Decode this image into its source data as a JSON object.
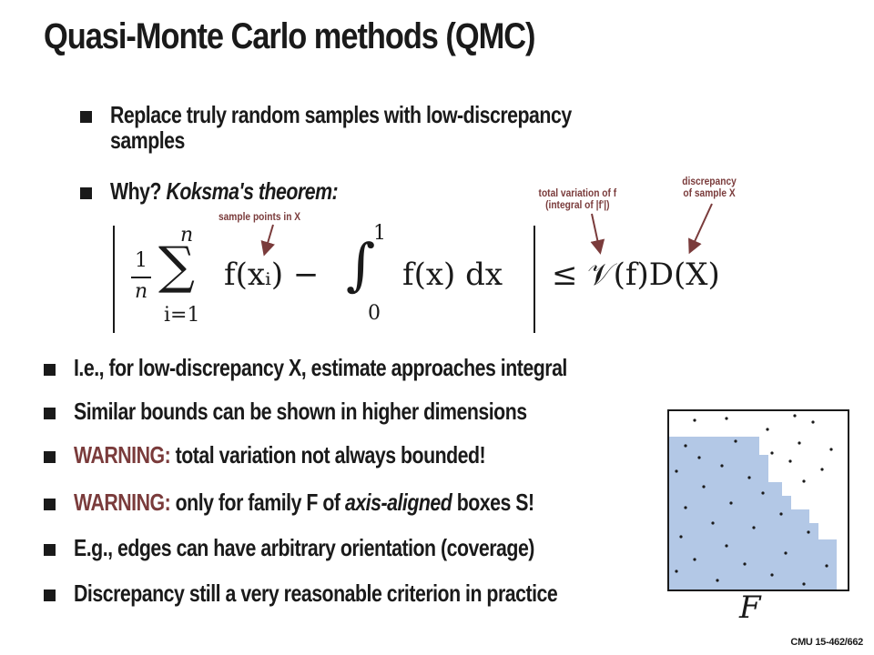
{
  "title": "Quasi-Monte Carlo methods (QMC)",
  "bullets_top": [
    {
      "line1": "Replace truly random samples with low-discrepancy",
      "line2": "samples"
    },
    {
      "plain": "Why? ",
      "italic": "Koksma's theorem:"
    }
  ],
  "annotations": {
    "sample_points": "sample points in X",
    "total_variation_1": "total variation of f",
    "total_variation_2": "(integral of |f'|)",
    "discrepancy_1": "discrepancy",
    "discrepancy_2": "of sample X"
  },
  "formula": {
    "frac_num": "1",
    "frac_den": "n",
    "sum_upper": "n",
    "sum_lower": "i=1",
    "sum_symbol": "∑",
    "term1": "f(xᵢ) −",
    "integral_symbol": "∫",
    "int_upper": "1",
    "int_lower": "0",
    "term2": "f(x)  dx",
    "rhs": "≤ 𝒱(f)D(X)"
  },
  "bullets_bottom": [
    {
      "text": "I.e., for low-discrepancy X, estimate approaches integral"
    },
    {
      "text": "Similar bounds can be shown in higher dimensions"
    },
    {
      "warn": "WARNING:",
      "text": " total variation not always bounded!"
    },
    {
      "warn": "WARNING:",
      "text_pre": " only for family F of ",
      "italic": "axis-aligned",
      "text_post": " boxes S!"
    },
    {
      "text": "E.g., edges can have arbitrary orientation (coverage)"
    },
    {
      "text": "Discrepancy still a very reasonable criterion in practice"
    }
  ],
  "figure_label": "F",
  "footer": "CMU 15-462/662",
  "colors": {
    "warning": "#7a3b3b",
    "box_fill": "#b3c8e6",
    "text": "#1a1a1a"
  }
}
